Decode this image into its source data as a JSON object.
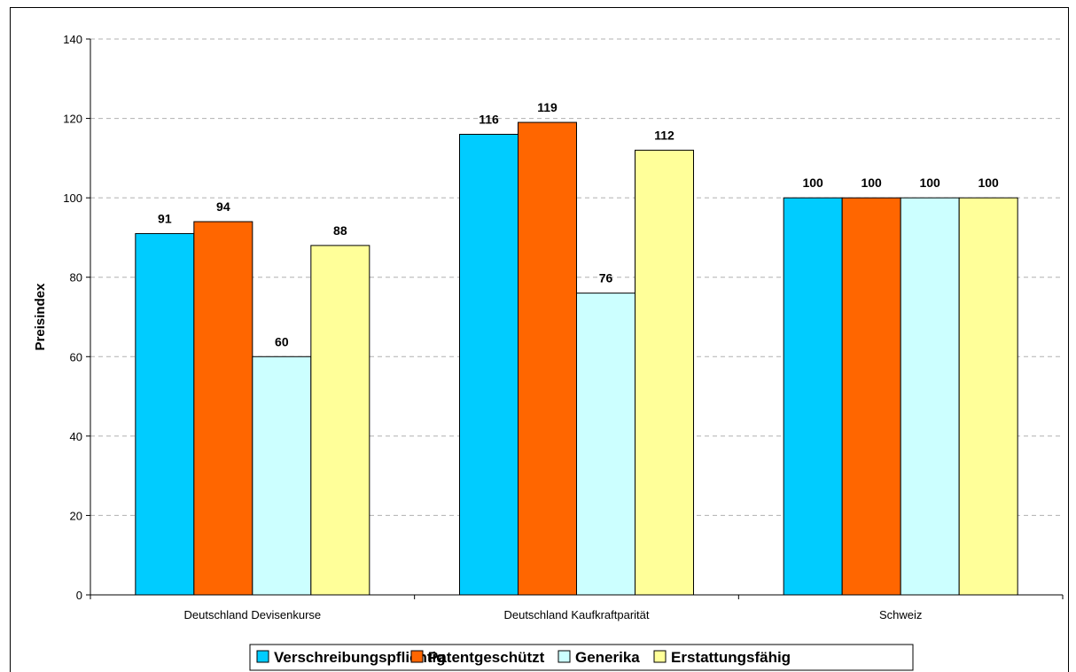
{
  "chart_data": {
    "type": "bar",
    "categories": [
      "Deutschland Devisenkurse",
      "Deutschland Kaufkraftparität",
      "Schweiz"
    ],
    "series": [
      {
        "name": "Verschreibungspflichtig",
        "color": "#00ccff",
        "values": [
          91,
          116,
          100
        ]
      },
      {
        "name": "Patentgeschützt",
        "color": "#ff6600",
        "values": [
          94,
          119,
          100
        ]
      },
      {
        "name": "Generika",
        "color": "#ccffff",
        "values": [
          60,
          76,
          100
        ]
      },
      {
        "name": "Erstattungsfähig",
        "color": "#ffff99",
        "values": [
          88,
          112,
          100
        ]
      }
    ],
    "title": "",
    "xlabel": "",
    "ylabel": "Preisindex",
    "ylim": [
      0,
      140
    ],
    "yticks": [
      0,
      20,
      40,
      60,
      80,
      100,
      120,
      140
    ],
    "grid": true,
    "legend_position": "bottom"
  }
}
